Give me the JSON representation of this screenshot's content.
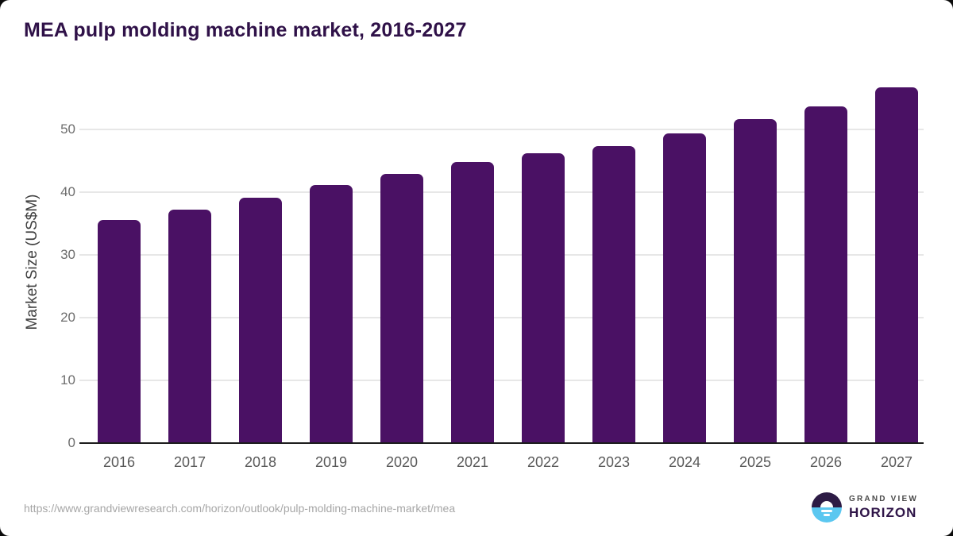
{
  "title": "MEA pulp molding machine market, 2016-2027",
  "chart_data": {
    "type": "bar",
    "title": "MEA pulp molding machine market, 2016-2027",
    "categories": [
      "2016",
      "2017",
      "2018",
      "2019",
      "2020",
      "2021",
      "2022",
      "2023",
      "2024",
      "2025",
      "2026",
      "2027"
    ],
    "values": [
      35.6,
      37.2,
      39.1,
      41.1,
      42.9,
      44.8,
      46.2,
      47.3,
      49.4,
      51.6,
      53.7,
      56.7
    ],
    "xlabel": "",
    "ylabel": "Market Size (US$M)",
    "ylim": [
      0,
      58
    ],
    "yticks": [
      0,
      10,
      20,
      30,
      40,
      50
    ],
    "grid": "horizontal-light",
    "legend": "none",
    "bar_color": "#4a1164"
  },
  "footer": {
    "source_url": "https://www.grandviewresearch.com/horizon/outlook/pulp-molding-machine-market/mea",
    "logo": {
      "line1": "GRAND VIEW",
      "line2": "HORIZON"
    }
  },
  "colors": {
    "bar_purple": "#4a1164",
    "title_purple": "#2f1148",
    "logo_dark_purple": "#2d1b45",
    "logo_blue": "#5bc7f0",
    "gridline": "#e7e7e7",
    "axis_line": "#1c1c1c",
    "tick_text": "#6e6e6e",
    "url_text": "#a6a6a6"
  }
}
